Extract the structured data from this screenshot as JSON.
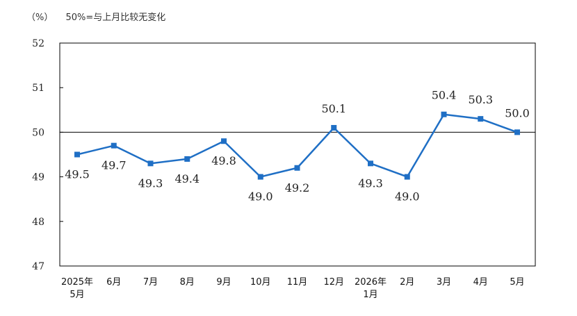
{
  "header": {
    "unit": "（%）",
    "note": "50%=与上月比较无变化"
  },
  "chart_data": {
    "type": "line",
    "categories": [
      [
        "2025年",
        "5月"
      ],
      [
        "6月"
      ],
      [
        "7月"
      ],
      [
        "8月"
      ],
      [
        "9月"
      ],
      [
        "10月"
      ],
      [
        "11月"
      ],
      [
        "12月"
      ],
      [
        "2026年",
        "1月"
      ],
      [
        "2月"
      ],
      [
        "3月"
      ],
      [
        "4月"
      ],
      [
        "5月"
      ]
    ],
    "values": [
      49.5,
      49.7,
      49.3,
      49.4,
      49.8,
      49.0,
      49.2,
      50.1,
      49.3,
      49.0,
      50.4,
      50.3,
      50.0
    ],
    "labels": [
      "49.5",
      "49.7",
      "49.3",
      "49.4",
      "49.8",
      "49.0",
      "49.2",
      "50.1",
      "49.3",
      "49.0",
      "50.4",
      "50.3",
      "50.0"
    ],
    "label_pos": [
      "below",
      "below",
      "below",
      "below",
      "below",
      "below",
      "below",
      "above",
      "below",
      "below",
      "above",
      "above",
      "above"
    ],
    "yticks": [
      47,
      48,
      49,
      50,
      51,
      52
    ],
    "ylim": [
      47,
      52
    ],
    "reference_line": 50,
    "series_color": "#1f6fc5",
    "grid": false,
    "legend": "none"
  }
}
